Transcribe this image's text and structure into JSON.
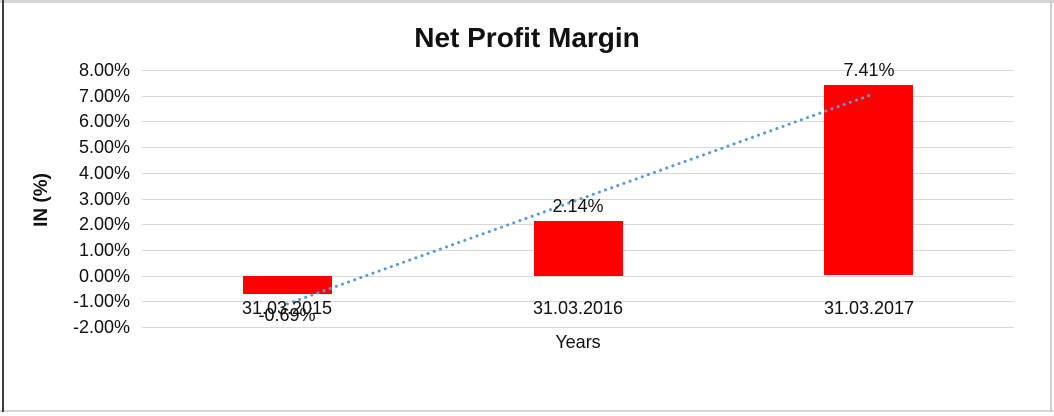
{
  "chart_data": {
    "type": "bar",
    "title": "Net Profit Margin",
    "xlabel": "Years",
    "ylabel": "IN (%)",
    "categories": [
      "31.03.2015",
      "31.03.2016",
      "31.03.2017"
    ],
    "values": [
      -0.69,
      2.14,
      7.41
    ],
    "data_labels": [
      "-0.69%",
      "2.14%",
      "7.41%"
    ],
    "bar_color": "#FF0000",
    "grid": true,
    "gridline_color": "#d9d9d9",
    "legend": "none",
    "y_axis": {
      "min": -2,
      "max": 8,
      "step": 1,
      "tick_labels": [
        "8.00%",
        "7.00%",
        "6.00%",
        "5.00%",
        "4.00%",
        "3.00%",
        "2.00%",
        "1.00%",
        "0.00%",
        "-1.00%",
        "-2.00%"
      ]
    },
    "trendline": {
      "type": "linear",
      "style": "dotted",
      "color": "#5B9BD5",
      "start_pct": -1.1,
      "end_pct": 7.0
    }
  }
}
